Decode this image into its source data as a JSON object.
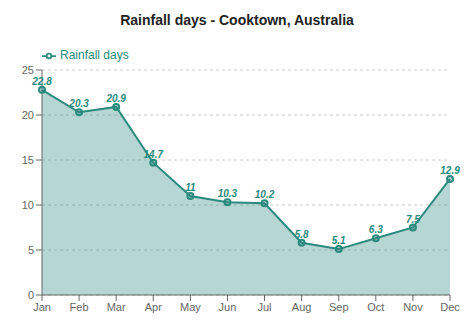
{
  "chart_data": {
    "type": "area",
    "title": "Rainfall days - Cooktown, Australia",
    "categories": [
      "Jan",
      "Feb",
      "Mar",
      "Apr",
      "May",
      "Jun",
      "Jul",
      "Aug",
      "Sep",
      "Oct",
      "Nov",
      "Dec"
    ],
    "series": [
      {
        "name": "Rainfall days",
        "color": "#2a8a7e",
        "values": [
          22.8,
          20.3,
          20.9,
          14.7,
          11.0,
          10.3,
          10.2,
          5.8,
          5.1,
          6.3,
          7.5,
          12.9
        ],
        "marker": "circle"
      }
    ],
    "ylim": [
      0,
      25
    ],
    "yticks": [
      0,
      5,
      10,
      15,
      20,
      25
    ],
    "grid": true,
    "legend": "upper left",
    "data_labels": true
  }
}
